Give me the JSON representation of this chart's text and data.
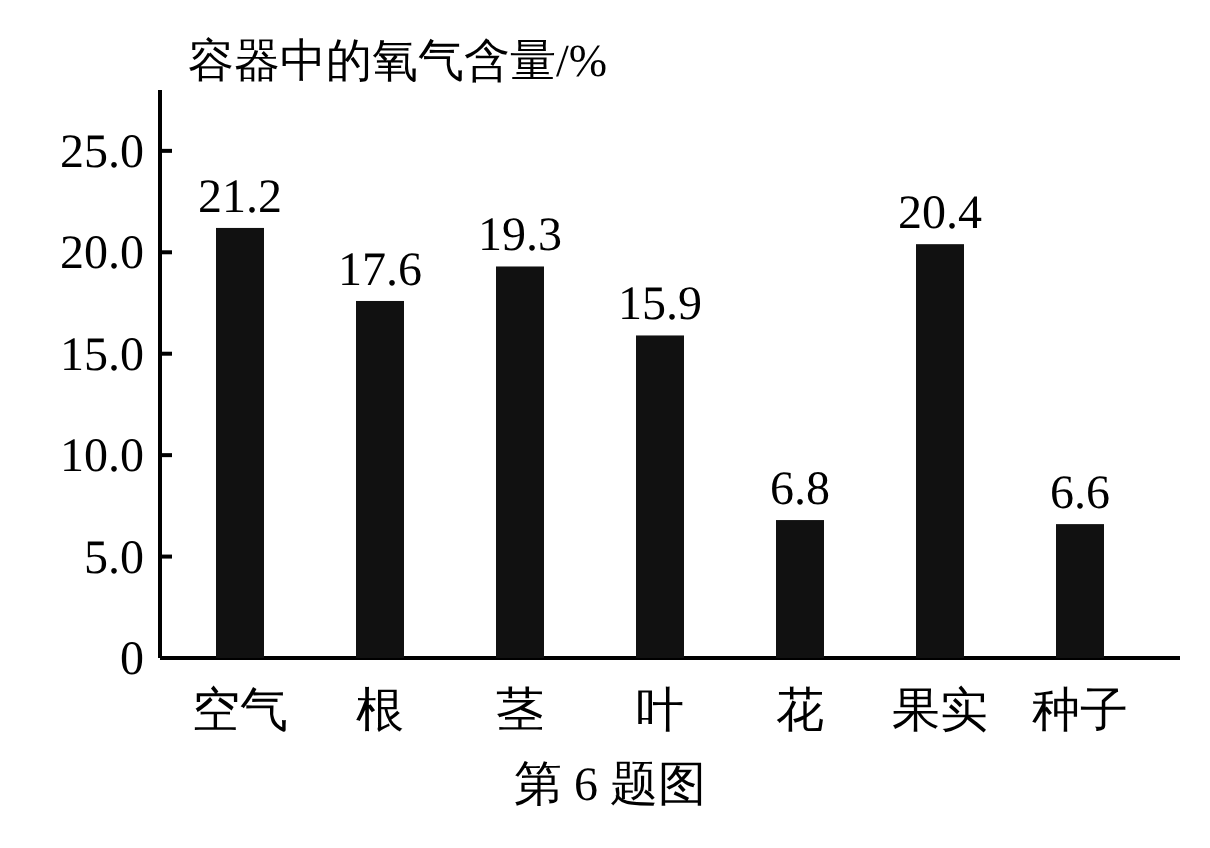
{
  "chart_data": {
    "type": "bar",
    "ylabel": "容器中的氧气含量/%",
    "categories": [
      "空气",
      "根",
      "茎",
      "叶",
      "花",
      "果实",
      "种子"
    ],
    "values": [
      21.2,
      17.6,
      19.3,
      15.9,
      6.8,
      20.4,
      6.6
    ],
    "color": "#111111",
    "ylim": [
      0,
      28
    ],
    "yticks": [
      {
        "value": 0,
        "label": "0"
      },
      {
        "value": 5,
        "label": "5.0"
      },
      {
        "value": 10,
        "label": "10.0"
      },
      {
        "value": 15,
        "label": "15.0"
      },
      {
        "value": 20,
        "label": "20.0"
      },
      {
        "value": 25,
        "label": "25.0"
      }
    ],
    "data_labels": true,
    "annotations": [
      "第 6 题图"
    ]
  }
}
